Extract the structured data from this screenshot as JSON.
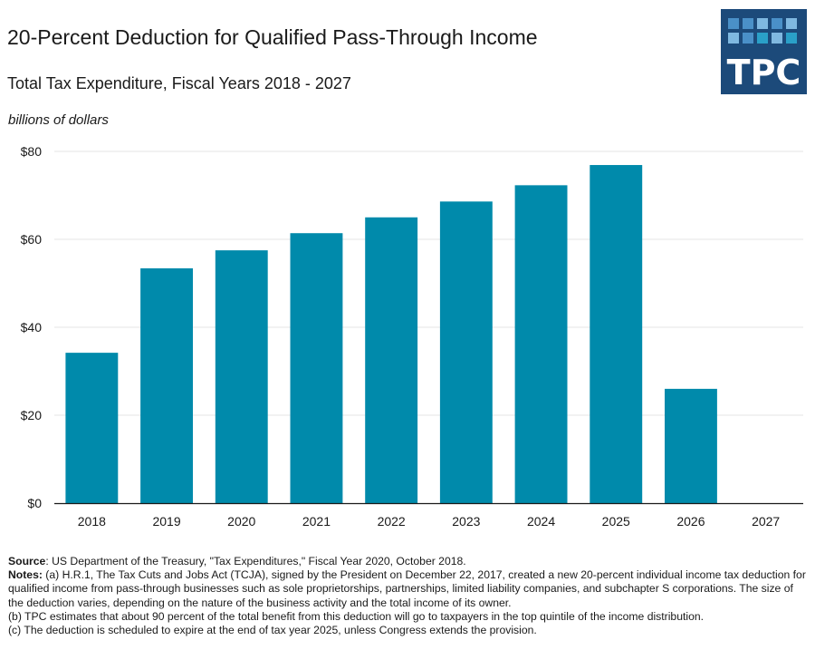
{
  "header": {
    "title": "20-Percent Deduction for Qualified Pass-Through Income",
    "subtitle": "Total Tax Expenditure, Fiscal Years 2018 - 2027",
    "units_label": "billions of dollars"
  },
  "logo": {
    "text": "TPC",
    "icon": "tpc-logo-grid"
  },
  "colors": {
    "bar": "#008aab",
    "logo_bg": "#1c4a7a",
    "gridline": "#e6e6e6",
    "axis": "#1a1a1a"
  },
  "chart_data": {
    "type": "bar",
    "title": "20-Percent Deduction for Qualified Pass-Through Income",
    "subtitle": "Total Tax Expenditure, Fiscal Years 2018 - 2027",
    "xlabel": "",
    "ylabel": "billions of dollars",
    "categories": [
      "2018",
      "2019",
      "2020",
      "2021",
      "2022",
      "2023",
      "2024",
      "2025",
      "2026",
      "2027"
    ],
    "values": [
      34.2,
      53.4,
      57.5,
      61.4,
      65.0,
      68.6,
      72.3,
      76.9,
      26.0,
      0
    ],
    "ylim": [
      0,
      80
    ],
    "yticks": [
      0,
      20,
      40,
      60,
      80
    ],
    "ytick_labels": [
      "$0",
      "$20",
      "$40",
      "$60",
      "$80"
    ],
    "grid": true,
    "legend": "none"
  },
  "footer": {
    "source_label": "Source",
    "source_text": ": US Department of the Treasury, \"Tax Expenditures,\" Fiscal Year 2020, October 2018.",
    "notes_label": "Notes:",
    "note_a": " (a) H.R.1, The Tax Cuts and Jobs Act (TCJA), signed by the President on December 22, 2017, created a new 20-percent individual income tax deduction for qualified income from pass-through businesses such as sole proprietorships, partnerships, limited liability companies, and subchapter S corporations. The size of the deduction varies, depending on the nature of the business activity and the total income of its owner.",
    "note_b": "(b) TPC estimates that about 90 percent of the total benefit from this deduction will go to taxpayers in the top quintile of the income distribution.",
    "note_c": "(c) The deduction is scheduled to expire at the end of tax year 2025, unless Congress extends the provision."
  }
}
